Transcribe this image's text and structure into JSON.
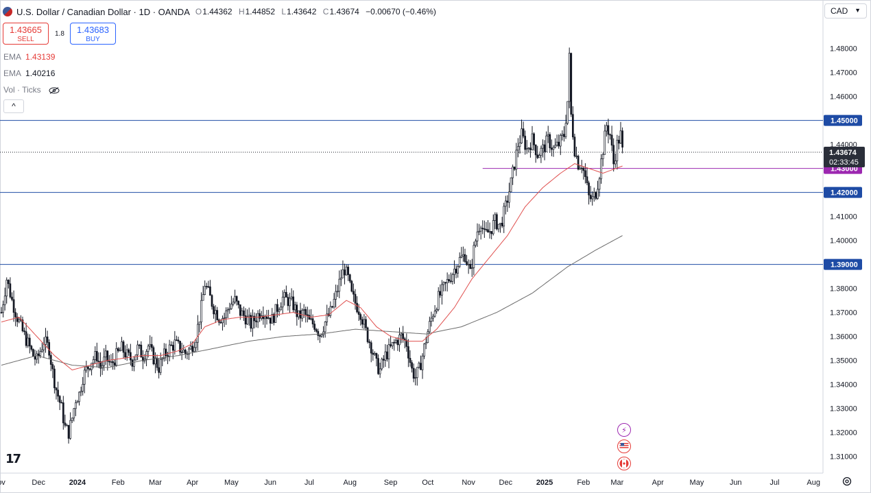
{
  "header": {
    "title": "U.S. Dollar / Canadian Dollar · 1D · OANDA",
    "ohlc": [
      {
        "k": "O",
        "v": "1.44362"
      },
      {
        "k": "H",
        "v": "1.44852"
      },
      {
        "k": "L",
        "v": "1.43642"
      },
      {
        "k": "C",
        "v": "1.43674"
      }
    ],
    "change": "−0.00670 (−0.46%)"
  },
  "trade": {
    "sell_price": "1.43665",
    "sell_label": "SELL",
    "spread": "1.8",
    "buy_price": "1.43683",
    "buy_label": "BUY"
  },
  "indicators": {
    "ema1_label": "EMA",
    "ema1_value": "1.43139",
    "ema2_label": "EMA",
    "ema2_value": "1.40216",
    "vol_label": "Vol · Ticks"
  },
  "collapse_glyph": "^",
  "currency": {
    "selected": "CAD"
  },
  "logo": "17",
  "colors": {
    "up": "#131722",
    "down": "#131722",
    "ema_fast": "#e0504f",
    "ema_slow": "#6b6b6b",
    "hline": "#1e4ba5",
    "purple": "#9c27b0",
    "price_label": "#1e4ba5"
  },
  "chart_data": {
    "type": "candlestick",
    "ylim": [
      1.305,
      1.493
    ],
    "y_ticks": [
      "1.31000",
      "1.32000",
      "1.33000",
      "1.34000",
      "1.35000",
      "1.36000",
      "1.37000",
      "1.38000",
      "1.39000",
      "1.40000",
      "1.41000",
      "1.42000",
      "1.43000",
      "1.44000",
      "1.45000",
      "1.46000",
      "1.47000",
      "1.48000"
    ],
    "x_ticks": [
      {
        "label": "ov",
        "bar": 0
      },
      {
        "label": "Dec",
        "bar": 21
      },
      {
        "label": "2024",
        "bar": 43,
        "bold": true
      },
      {
        "label": "Feb",
        "bar": 66
      },
      {
        "label": "Mar",
        "bar": 87
      },
      {
        "label": "Apr",
        "bar": 108
      },
      {
        "label": "May",
        "bar": 130
      },
      {
        "label": "Jun",
        "bar": 152
      },
      {
        "label": "Jul",
        "bar": 174
      },
      {
        "label": "Aug",
        "bar": 197
      },
      {
        "label": "Sep",
        "bar": 220
      },
      {
        "label": "Oct",
        "bar": 241
      },
      {
        "label": "Nov",
        "bar": 264
      },
      {
        "label": "Dec",
        "bar": 285
      },
      {
        "label": "2025",
        "bar": 307,
        "bold": true
      },
      {
        "label": "Feb",
        "bar": 329
      },
      {
        "label": "Mar",
        "bar": 348
      },
      {
        "label": "Apr",
        "bar": 371
      },
      {
        "label": "May",
        "bar": 393
      },
      {
        "label": "Jun",
        "bar": 415
      },
      {
        "label": "Jul",
        "bar": 437
      },
      {
        "label": "Aug",
        "bar": 459
      }
    ],
    "price_path": [
      [
        0,
        1.37
      ],
      [
        3,
        1.384
      ],
      [
        6,
        1.375
      ],
      [
        9,
        1.368
      ],
      [
        12,
        1.362
      ],
      [
        15,
        1.357
      ],
      [
        18,
        1.352
      ],
      [
        20,
        1.35
      ],
      [
        24,
        1.358
      ],
      [
        27,
        1.355
      ],
      [
        29,
        1.345
      ],
      [
        31,
        1.338
      ],
      [
        34,
        1.33
      ],
      [
        36,
        1.322
      ],
      [
        38,
        1.32
      ],
      [
        40,
        1.326
      ],
      [
        42,
        1.334
      ],
      [
        44,
        1.336
      ],
      [
        46,
        1.343
      ],
      [
        48,
        1.346
      ],
      [
        51,
        1.35
      ],
      [
        54,
        1.352
      ],
      [
        56,
        1.347
      ],
      [
        59,
        1.351
      ],
      [
        62,
        1.348
      ],
      [
        65,
        1.352
      ],
      [
        68,
        1.355
      ],
      [
        71,
        1.352
      ],
      [
        74,
        1.35
      ],
      [
        77,
        1.355
      ],
      [
        80,
        1.352
      ],
      [
        83,
        1.356
      ],
      [
        86,
        1.351
      ],
      [
        89,
        1.347
      ],
      [
        92,
        1.352
      ],
      [
        95,
        1.355
      ],
      [
        98,
        1.357
      ],
      [
        101,
        1.355
      ],
      [
        104,
        1.353
      ],
      [
        107,
        1.355
      ],
      [
        110,
        1.36
      ],
      [
        113,
        1.372
      ],
      [
        115,
        1.382
      ],
      [
        117,
        1.378
      ],
      [
        120,
        1.372
      ],
      [
        123,
        1.368
      ],
      [
        126,
        1.368
      ],
      [
        129,
        1.373
      ],
      [
        132,
        1.375
      ],
      [
        135,
        1.37
      ],
      [
        138,
        1.368
      ],
      [
        141,
        1.365
      ],
      [
        144,
        1.368
      ],
      [
        147,
        1.371
      ],
      [
        150,
        1.369
      ],
      [
        153,
        1.367
      ],
      [
        156,
        1.372
      ],
      [
        159,
        1.376
      ],
      [
        162,
        1.375
      ],
      [
        165,
        1.373
      ],
      [
        168,
        1.368
      ],
      [
        171,
        1.37
      ],
      [
        174,
        1.366
      ],
      [
        177,
        1.365
      ],
      [
        180,
        1.361
      ],
      [
        183,
        1.366
      ],
      [
        186,
        1.37
      ],
      [
        189,
        1.377
      ],
      [
        192,
        1.385
      ],
      [
        194,
        1.388
      ],
      [
        196,
        1.384
      ],
      [
        198,
        1.377
      ],
      [
        200,
        1.374
      ],
      [
        203,
        1.37
      ],
      [
        206,
        1.362
      ],
      [
        209,
        1.356
      ],
      [
        212,
        1.348
      ],
      [
        214,
        1.346
      ],
      [
        217,
        1.352
      ],
      [
        220,
        1.355
      ],
      [
        223,
        1.358
      ],
      [
        226,
        1.36
      ],
      [
        229,
        1.357
      ],
      [
        232,
        1.346
      ],
      [
        234,
        1.343
      ],
      [
        236,
        1.346
      ],
      [
        238,
        1.352
      ],
      [
        241,
        1.362
      ],
      [
        244,
        1.37
      ],
      [
        247,
        1.376
      ],
      [
        250,
        1.38
      ],
      [
        253,
        1.384
      ],
      [
        256,
        1.388
      ],
      [
        259,
        1.392
      ],
      [
        262,
        1.394
      ],
      [
        265,
        1.386
      ],
      [
        267,
        1.396
      ],
      [
        269,
        1.404
      ],
      [
        271,
        1.408
      ],
      [
        273,
        1.402
      ],
      [
        276,
        1.404
      ],
      [
        279,
        1.408
      ],
      [
        282,
        1.406
      ],
      [
        285,
        1.414
      ],
      [
        288,
        1.424
      ],
      [
        290,
        1.432
      ],
      [
        292,
        1.44
      ],
      [
        294,
        1.444
      ],
      [
        297,
        1.438
      ],
      [
        300,
        1.442
      ],
      [
        303,
        1.436
      ],
      [
        306,
        1.438
      ],
      [
        309,
        1.442
      ],
      [
        312,
        1.438
      ],
      [
        315,
        1.44
      ],
      [
        318,
        1.444
      ],
      [
        320,
        1.458
      ],
      [
        321,
        1.476
      ],
      [
        322,
        1.452
      ],
      [
        324,
        1.438
      ],
      [
        326,
        1.432
      ],
      [
        328,
        1.432
      ],
      [
        330,
        1.426
      ],
      [
        332,
        1.418
      ],
      [
        334,
        1.417
      ],
      [
        336,
        1.42
      ],
      [
        338,
        1.428
      ],
      [
        340,
        1.438
      ],
      [
        342,
        1.448
      ],
      [
        344,
        1.444
      ],
      [
        346,
        1.432
      ],
      [
        348,
        1.44
      ],
      [
        350,
        1.444
      ],
      [
        351,
        1.437
      ]
    ],
    "ema_fast": [
      [
        0,
        1.366
      ],
      [
        10,
        1.368
      ],
      [
        20,
        1.36
      ],
      [
        30,
        1.352
      ],
      [
        40,
        1.346
      ],
      [
        50,
        1.348
      ],
      [
        60,
        1.35
      ],
      [
        70,
        1.351
      ],
      [
        80,
        1.352
      ],
      [
        90,
        1.352
      ],
      [
        100,
        1.354
      ],
      [
        108,
        1.357
      ],
      [
        115,
        1.364
      ],
      [
        125,
        1.367
      ],
      [
        135,
        1.368
      ],
      [
        145,
        1.368
      ],
      [
        155,
        1.369
      ],
      [
        165,
        1.37
      ],
      [
        175,
        1.368
      ],
      [
        185,
        1.369
      ],
      [
        195,
        1.375
      ],
      [
        203,
        1.372
      ],
      [
        212,
        1.364
      ],
      [
        220,
        1.36
      ],
      [
        230,
        1.358
      ],
      [
        238,
        1.358
      ],
      [
        246,
        1.363
      ],
      [
        256,
        1.372
      ],
      [
        266,
        1.384
      ],
      [
        276,
        1.393
      ],
      [
        286,
        1.402
      ],
      [
        296,
        1.414
      ],
      [
        306,
        1.422
      ],
      [
        316,
        1.428
      ],
      [
        324,
        1.432
      ],
      [
        332,
        1.43
      ],
      [
        340,
        1.428
      ],
      [
        351,
        1.431
      ]
    ],
    "ema_slow": [
      [
        0,
        1.348
      ],
      [
        20,
        1.352
      ],
      [
        40,
        1.348
      ],
      [
        60,
        1.347
      ],
      [
        80,
        1.35
      ],
      [
        100,
        1.352
      ],
      [
        120,
        1.355
      ],
      [
        140,
        1.358
      ],
      [
        160,
        1.36
      ],
      [
        180,
        1.361
      ],
      [
        200,
        1.363
      ],
      [
        220,
        1.362
      ],
      [
        240,
        1.361
      ],
      [
        260,
        1.364
      ],
      [
        280,
        1.37
      ],
      [
        300,
        1.378
      ],
      [
        320,
        1.389
      ],
      [
        336,
        1.396
      ],
      [
        351,
        1.402
      ]
    ],
    "levels": [
      {
        "value": 1.45,
        "label": "1.45000"
      },
      {
        "value": 1.42,
        "label": "1.42000"
      },
      {
        "value": 1.39,
        "label": "1.39000"
      }
    ],
    "purple_level": {
      "value": 1.43,
      "label": "1.43000",
      "from_bar": 272
    },
    "last_price": {
      "value": 1.43674,
      "label": "1.43674",
      "countdown": "02:33:45"
    }
  }
}
